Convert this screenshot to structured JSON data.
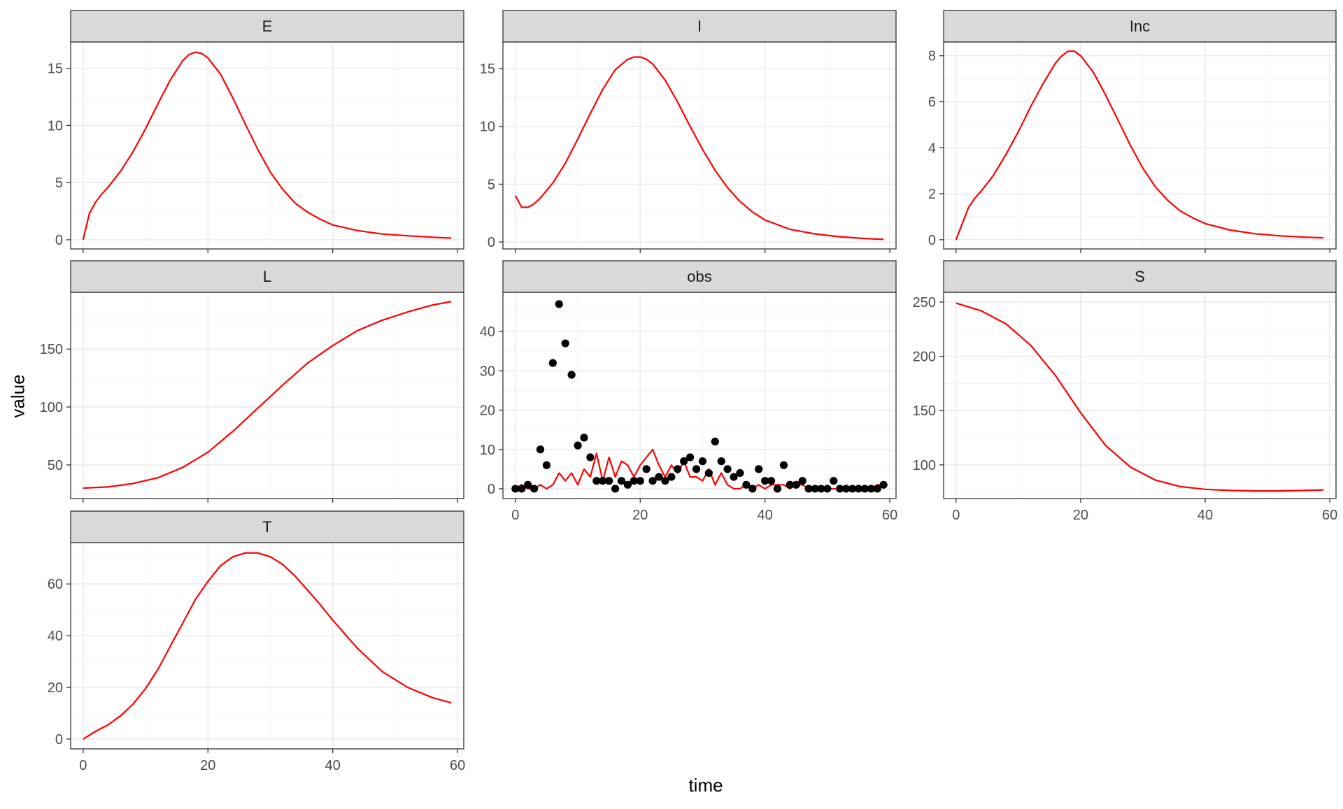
{
  "figure": {
    "xlabel": "time",
    "ylabel": "value"
  },
  "colors": {
    "model_line": "#ff0000",
    "observed_points": "#000000"
  },
  "chart_data": [
    {
      "type": "line",
      "facet": "E",
      "xlim": [
        -2,
        61
      ],
      "ylim": [
        -0.8,
        17.3
      ],
      "xticks": [
        0,
        20,
        40,
        60
      ],
      "yticks": [
        0,
        5,
        10,
        15
      ],
      "show_x_labels": false,
      "series": [
        {
          "x": [
            0,
            1,
            2,
            3,
            4,
            6,
            8,
            10,
            12,
            14,
            16,
            17,
            18,
            19,
            20,
            22,
            24,
            26,
            28,
            30,
            32,
            34,
            36,
            38,
            40,
            44,
            48,
            52,
            56,
            59
          ],
          "values": [
            0,
            2.3,
            3.3,
            4.0,
            4.6,
            6.0,
            7.7,
            9.7,
            11.9,
            14.0,
            15.7,
            16.2,
            16.4,
            16.3,
            15.9,
            14.5,
            12.4,
            10.1,
            7.9,
            5.9,
            4.4,
            3.2,
            2.4,
            1.8,
            1.3,
            0.8,
            0.5,
            0.35,
            0.22,
            0.15
          ]
        }
      ]
    },
    {
      "type": "line",
      "facet": "I",
      "xlim": [
        -2,
        61
      ],
      "ylim": [
        -0.6,
        17.3
      ],
      "xticks": [
        0,
        20,
        40,
        60
      ],
      "yticks": [
        0,
        5,
        10,
        15
      ],
      "show_x_labels": false,
      "series": [
        {
          "x": [
            0,
            1,
            2,
            3,
            4,
            6,
            8,
            10,
            12,
            14,
            16,
            18,
            19,
            20,
            21,
            22,
            24,
            26,
            28,
            30,
            32,
            34,
            36,
            38,
            40,
            44,
            48,
            52,
            56,
            59
          ],
          "values": [
            4.0,
            3.0,
            3.0,
            3.3,
            3.8,
            5.1,
            6.8,
            8.9,
            11.1,
            13.2,
            14.9,
            15.8,
            16.0,
            16.0,
            15.8,
            15.4,
            14.0,
            12.1,
            10.0,
            8.0,
            6.2,
            4.7,
            3.5,
            2.6,
            1.9,
            1.1,
            0.7,
            0.45,
            0.3,
            0.22
          ]
        }
      ]
    },
    {
      "type": "line",
      "facet": "Inc",
      "xlim": [
        -2,
        61
      ],
      "ylim": [
        -0.4,
        8.6
      ],
      "xticks": [
        0,
        20,
        40,
        60
      ],
      "yticks": [
        0,
        2,
        4,
        6,
        8
      ],
      "show_x_labels": false,
      "series": [
        {
          "x": [
            0,
            1,
            2,
            3,
            4,
            6,
            8,
            10,
            12,
            14,
            16,
            17,
            18,
            19,
            20,
            22,
            24,
            26,
            28,
            30,
            32,
            34,
            36,
            38,
            40,
            44,
            48,
            52,
            56,
            59
          ],
          "values": [
            0,
            0.7,
            1.4,
            1.8,
            2.1,
            2.8,
            3.7,
            4.7,
            5.8,
            6.8,
            7.7,
            8.0,
            8.2,
            8.2,
            8.0,
            7.3,
            6.3,
            5.2,
            4.1,
            3.1,
            2.3,
            1.7,
            1.25,
            0.95,
            0.7,
            0.42,
            0.26,
            0.17,
            0.11,
            0.08
          ]
        }
      ]
    },
    {
      "type": "line",
      "facet": "L",
      "xlim": [
        -2,
        61
      ],
      "ylim": [
        21,
        199
      ],
      "xticks": [
        0,
        20,
        40,
        60
      ],
      "yticks": [
        50,
        100,
        150
      ],
      "show_x_labels": false,
      "series": [
        {
          "x": [
            0,
            4,
            8,
            12,
            16,
            20,
            24,
            28,
            32,
            36,
            40,
            44,
            48,
            52,
            56,
            59
          ],
          "values": [
            30,
            31,
            34,
            39,
            48,
            61,
            79,
            99,
            119,
            138,
            153,
            166,
            175,
            182,
            188,
            191
          ]
        }
      ]
    },
    {
      "type": "scatter",
      "facet": "obs",
      "xlim": [
        -2,
        61
      ],
      "ylim": [
        -2.5,
        50
      ],
      "xticks": [
        0,
        20,
        40,
        60
      ],
      "yticks": [
        0,
        10,
        20,
        30,
        40
      ],
      "show_x_labels": true,
      "series": [
        {
          "kind": "line",
          "x": [
            0,
            1,
            2,
            3,
            4,
            5,
            6,
            7,
            8,
            9,
            10,
            11,
            12,
            13,
            14,
            15,
            16,
            17,
            18,
            19,
            20,
            21,
            22,
            23,
            24,
            25,
            26,
            27,
            28,
            29,
            30,
            31,
            32,
            33,
            34,
            35,
            36,
            37,
            38,
            39,
            40,
            41,
            42,
            43,
            44,
            45,
            46,
            47,
            48,
            49,
            50,
            51,
            52,
            53,
            54,
            55,
            56,
            57,
            58,
            59
          ],
          "values": [
            0,
            1,
            0,
            0,
            1,
            0,
            1,
            4,
            2,
            4,
            1,
            5,
            3,
            9,
            2,
            8,
            3,
            7,
            6,
            3,
            6,
            8,
            10,
            6,
            3,
            6,
            4,
            7,
            3,
            3,
            2,
            5,
            1,
            4,
            1,
            0,
            0,
            1,
            0,
            1,
            0,
            1,
            1,
            1,
            0,
            1,
            1,
            0,
            0,
            0,
            0,
            0,
            0,
            0,
            0,
            0,
            0,
            0,
            1,
            1
          ]
        },
        {
          "kind": "points",
          "x": [
            0,
            1,
            2,
            3,
            4,
            5,
            6,
            7,
            8,
            9,
            10,
            11,
            12,
            13,
            14,
            15,
            16,
            17,
            18,
            19,
            20,
            21,
            22,
            23,
            24,
            25,
            26,
            27,
            28,
            29,
            30,
            31,
            32,
            33,
            34,
            35,
            36,
            37,
            38,
            39,
            40,
            41,
            42,
            43,
            44,
            45,
            46,
            47,
            48,
            49,
            50,
            51,
            52,
            53,
            54,
            55,
            56,
            57,
            58,
            59
          ],
          "values": [
            0,
            0,
            1,
            0,
            10,
            6,
            32,
            47,
            37,
            29,
            11,
            13,
            8,
            2,
            2,
            2,
            0,
            2,
            1,
            2,
            2,
            5,
            2,
            3,
            2,
            3,
            5,
            7,
            8,
            5,
            7,
            4,
            12,
            7,
            5,
            3,
            4,
            1,
            0,
            5,
            2,
            2,
            0,
            6,
            1,
            1,
            2,
            0,
            0,
            0,
            0,
            2,
            0,
            0,
            0,
            0,
            0,
            0,
            0,
            1
          ]
        }
      ]
    },
    {
      "type": "line",
      "facet": "S",
      "xlim": [
        -2,
        61
      ],
      "ylim": [
        69,
        259
      ],
      "xticks": [
        0,
        20,
        40,
        60
      ],
      "yticks": [
        100,
        150,
        200,
        250
      ],
      "show_x_labels": true,
      "series": [
        {
          "x": [
            0,
            4,
            8,
            12,
            16,
            20,
            24,
            28,
            32,
            36,
            40,
            44,
            48,
            52,
            56,
            59
          ],
          "values": [
            249,
            242,
            230,
            210,
            182,
            148,
            118,
            98,
            86,
            80,
            77.5,
            76.5,
            76,
            76,
            76.5,
            77
          ]
        }
      ]
    },
    {
      "type": "line",
      "facet": "T",
      "xlim": [
        -2,
        61
      ],
      "ylim": [
        -3.8,
        76
      ],
      "xticks": [
        0,
        20,
        40,
        60
      ],
      "yticks": [
        0,
        20,
        40,
        60
      ],
      "show_x_labels": true,
      "series": [
        {
          "x": [
            0,
            2,
            4,
            6,
            8,
            10,
            12,
            14,
            16,
            18,
            20,
            22,
            24,
            26,
            28,
            30,
            32,
            34,
            36,
            38,
            40,
            44,
            48,
            52,
            56,
            59
          ],
          "values": [
            0,
            3,
            5.5,
            9,
            13.5,
            19.5,
            27,
            36,
            45,
            54,
            61,
            67,
            70.5,
            72,
            72,
            70.5,
            67.5,
            63,
            57.5,
            52,
            46,
            35,
            26,
            20,
            16,
            14
          ]
        }
      ]
    }
  ]
}
